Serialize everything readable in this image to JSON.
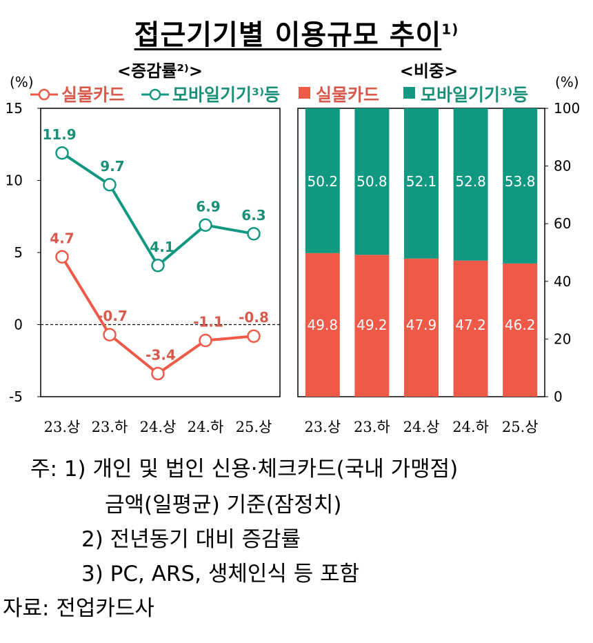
{
  "title": {
    "text": "접근기기별 이용규모 추이",
    "sup": "1)"
  },
  "colors": {
    "card": "#ef5a48",
    "mobile": "#119880",
    "card_text": "#d85a4c",
    "mobile_text": "#1a9078"
  },
  "chart_data": [
    {
      "type": "line",
      "title": "<증감률²⁾>",
      "ylabel": "(%)",
      "categories": [
        "23.상",
        "23.하",
        "24.상",
        "24.하",
        "25.상"
      ],
      "ylim": [
        -5,
        15
      ],
      "yticks": [
        "15",
        "10",
        "5",
        "0",
        "-5"
      ],
      "series": [
        {
          "name": "실물카드",
          "values": [
            4.7,
            -0.7,
            -3.4,
            -1.1,
            -0.8
          ],
          "labels": [
            "4.7",
            "-0.7",
            "-3.4",
            "-1.1",
            "-0.8"
          ]
        },
        {
          "name": "모바일기기³⁾등",
          "values": [
            11.9,
            9.7,
            4.1,
            6.9,
            6.3
          ],
          "labels": [
            "11.9",
            "9.7",
            "4.1",
            "6.9",
            "6.3"
          ]
        }
      ]
    },
    {
      "type": "bar",
      "stacked": true,
      "title": "<비중>",
      "ylabel": "(%)",
      "categories": [
        "23.상",
        "23.하",
        "24.상",
        "24.하",
        "25.상"
      ],
      "ylim": [
        0,
        100
      ],
      "yticks": [
        "100",
        "80",
        "60",
        "40",
        "20",
        "0"
      ],
      "series": [
        {
          "name": "실물카드",
          "values": [
            49.8,
            49.2,
            47.9,
            47.2,
            46.2
          ],
          "labels": [
            "49.8",
            "49.2",
            "47.9",
            "47.2",
            "46.2"
          ]
        },
        {
          "name": "모바일기기³⁾등",
          "values": [
            50.2,
            50.8,
            52.1,
            52.8,
            53.8
          ],
          "labels": [
            "50.2",
            "50.8",
            "52.1",
            "52.8",
            "53.8"
          ]
        }
      ]
    }
  ],
  "notes": {
    "line1": "주:  1) 개인  및  법인  신용·체크카드(국내  가맹점)",
    "line2": "금액(일평균)  기준(잠정치)",
    "line3": "2) 전년동기  대비  증감률",
    "line4": "3) PC,  ARS,  생체인식  등  포함",
    "source": "자료:  전업카드사"
  }
}
